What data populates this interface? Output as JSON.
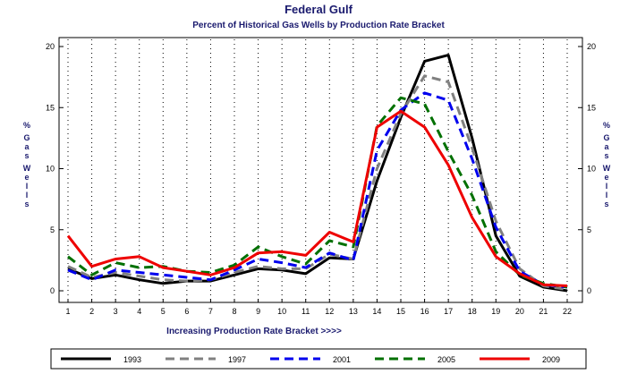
{
  "chart_data": {
    "type": "line",
    "title": "Federal Gulf",
    "subtitle": "Percent of Historical Gas Wells by Production Rate Bracket",
    "xlabel": "Increasing Production Rate Bracket >>>>",
    "ylabel": "% Gas Wells",
    "ylabel_left_chars": [
      "%",
      "G",
      "a",
      "s",
      "W",
      "e",
      "l",
      "l",
      "s"
    ],
    "ylabel_right_chars": [
      "%",
      "G",
      "a",
      "s",
      "W",
      "e",
      "l",
      "l",
      "s"
    ],
    "x": [
      1,
      2,
      3,
      4,
      5,
      6,
      7,
      8,
      9,
      10,
      11,
      12,
      13,
      14,
      15,
      16,
      17,
      18,
      19,
      20,
      21,
      22
    ],
    "x_tick_labels": [
      "1",
      "2",
      "3",
      "4",
      "5",
      "6",
      "7",
      "8",
      "9",
      "10",
      "11",
      "12",
      "13",
      "14",
      "15",
      "16",
      "17",
      "18",
      "19",
      "20",
      "21",
      "22"
    ],
    "y_tick_labels": [
      "0",
      "5",
      "10",
      "15",
      "20"
    ],
    "y_ticks": [
      0,
      5,
      10,
      15,
      20
    ],
    "xlim": [
      1,
      22
    ],
    "ylim": [
      0,
      20
    ],
    "grid": "vertical-dotted",
    "legend_position": "bottom",
    "series": [
      {
        "name": "1993",
        "color": "#000000",
        "dash": "solid",
        "values": [
          1.8,
          1.0,
          1.3,
          0.9,
          0.6,
          0.8,
          0.8,
          1.3,
          1.8,
          1.7,
          1.4,
          2.7,
          2.6,
          9.0,
          14.2,
          18.8,
          19.3,
          12.5,
          4.5,
          1.2,
          0.3,
          0.0
        ]
      },
      {
        "name": "1997",
        "color": "#808080",
        "dash": "dashed",
        "values": [
          2.0,
          1.1,
          1.5,
          1.2,
          0.9,
          0.8,
          0.9,
          1.5,
          2.0,
          1.8,
          1.8,
          3.0,
          2.6,
          10.0,
          14.5,
          17.6,
          17.1,
          11.7,
          5.7,
          1.8,
          0.4,
          0.1
        ]
      },
      {
        "name": "2001",
        "color": "#0000ee",
        "dash": "dashed",
        "values": [
          1.7,
          0.9,
          1.7,
          1.5,
          1.3,
          1.1,
          0.9,
          1.7,
          2.6,
          2.3,
          1.9,
          3.1,
          2.5,
          11.5,
          14.8,
          16.2,
          15.6,
          10.8,
          5.2,
          1.6,
          0.5,
          0.3
        ]
      },
      {
        "name": "2005",
        "color": "#007000",
        "dash": "dashed",
        "values": [
          2.8,
          1.3,
          2.3,
          1.9,
          2.0,
          1.6,
          1.5,
          2.1,
          3.6,
          2.8,
          2.2,
          4.1,
          3.6,
          13.5,
          15.8,
          15.3,
          11.4,
          7.8,
          3.2,
          1.3,
          0.6,
          0.3
        ]
      },
      {
        "name": "2009",
        "color": "#ee0000",
        "dash": "solid",
        "values": [
          4.5,
          2.0,
          2.6,
          2.8,
          1.9,
          1.6,
          1.3,
          1.9,
          3.1,
          3.2,
          2.9,
          4.8,
          4.0,
          13.4,
          14.7,
          13.4,
          10.3,
          6.0,
          2.8,
          1.4,
          0.5,
          0.4
        ]
      }
    ]
  }
}
